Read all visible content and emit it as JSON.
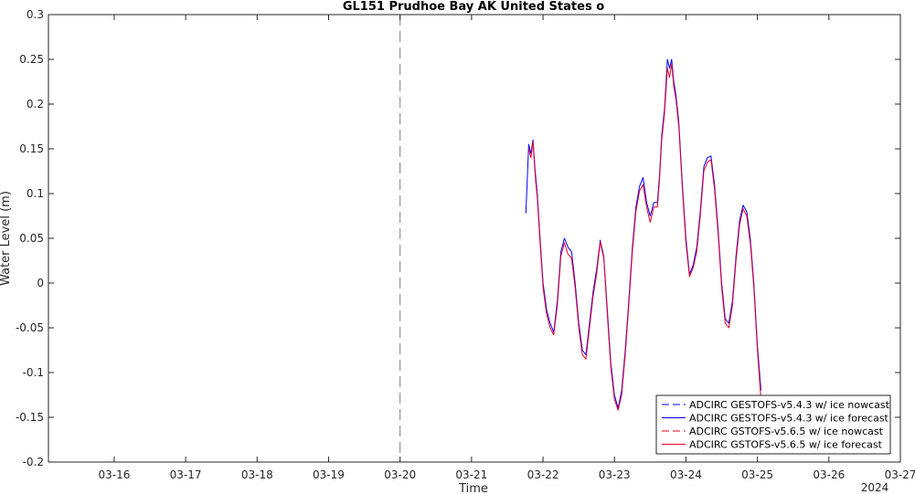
{
  "chart_data": {
    "type": "line",
    "title": "GL151 Prudhoe Bay AK United States o",
    "xlabel": "Time",
    "ylabel": "Water Level (m)",
    "x_tick_labels": [
      "03-16",
      "03-17",
      "03-18",
      "03-19",
      "03-20",
      "03-21",
      "03-22",
      "03-23",
      "03-24",
      "03-25",
      "03-26",
      "03-27"
    ],
    "x_tick_values": [
      16,
      17,
      18,
      19,
      20,
      21,
      22,
      23,
      24,
      25,
      26,
      27
    ],
    "x_secondary_label": "2024",
    "xlim": [
      15.08,
      27.0
    ],
    "ylim": [
      -0.2,
      0.3
    ],
    "y_ticks": [
      -0.2,
      -0.15,
      -0.1,
      -0.05,
      0,
      0.05,
      0.1,
      0.15,
      0.2,
      0.25,
      0.3
    ],
    "y_tick_labels": [
      "-0.2",
      "-0.15",
      "-0.1",
      "-0.05",
      "0",
      "0.05",
      "0.1",
      "0.15",
      "0.2",
      "0.25",
      "0.3"
    ],
    "nowcast_forecast_divider_x": 20.0,
    "grid": false,
    "legend_position": "bottom-right",
    "colors": {
      "blue": "#0000ff",
      "red": "#e8002a",
      "divider": "#7f7f7f"
    },
    "series": [
      {
        "name": "ADCIRC GESTOFS-v5.4.3 w/ ice nowcast",
        "style": "dashed",
        "color": "#0000ff",
        "x": [],
        "y": []
      },
      {
        "name": "ADCIRC GESTOFS-v5.4.3 w/ ice forecast",
        "style": "solid",
        "color": "#0000ff",
        "x": [
          21.76,
          21.8,
          21.83,
          21.86,
          21.89,
          21.92,
          21.95,
          22.0,
          22.05,
          22.1,
          22.15,
          22.2,
          22.25,
          22.3,
          22.35,
          22.4,
          22.45,
          22.5,
          22.55,
          22.6,
          22.65,
          22.7,
          22.75,
          22.8,
          22.85,
          22.9,
          22.95,
          23.0,
          23.05,
          23.1,
          23.15,
          23.2,
          23.25,
          23.3,
          23.35,
          23.4,
          23.45,
          23.5,
          23.55,
          23.6,
          23.63,
          23.66,
          23.7,
          23.74,
          23.77,
          23.8,
          23.83,
          23.86,
          23.9,
          23.95,
          24.0,
          24.05,
          24.1,
          24.15,
          24.2,
          24.25,
          24.3,
          24.35,
          24.4,
          24.45,
          24.5,
          24.55,
          24.6,
          24.65,
          24.7,
          24.75,
          24.8,
          24.85,
          24.9,
          24.95,
          25.0,
          25.05
        ],
        "y": [
          0.078,
          0.155,
          0.145,
          0.16,
          0.125,
          0.1,
          0.06,
          0.0,
          -0.03,
          -0.045,
          -0.055,
          -0.02,
          0.035,
          0.05,
          0.04,
          0.035,
          0.0,
          -0.045,
          -0.075,
          -0.08,
          -0.045,
          -0.01,
          0.015,
          0.048,
          0.03,
          -0.03,
          -0.09,
          -0.125,
          -0.14,
          -0.12,
          -0.075,
          -0.02,
          0.04,
          0.085,
          0.108,
          0.118,
          0.09,
          0.075,
          0.09,
          0.09,
          0.12,
          0.165,
          0.195,
          0.25,
          0.24,
          0.25,
          0.225,
          0.21,
          0.18,
          0.11,
          0.05,
          0.01,
          0.02,
          0.04,
          0.08,
          0.13,
          0.14,
          0.142,
          0.11,
          0.06,
          0.0,
          -0.04,
          -0.045,
          -0.02,
          0.03,
          0.07,
          0.087,
          0.08,
          0.05,
          0.0,
          -0.07,
          -0.12
        ]
      },
      {
        "name": "ADCIRC GSTOFS-v5.6.5 w/ ice nowcast",
        "style": "dashed",
        "color": "#e8002a",
        "x": [],
        "y": []
      },
      {
        "name": "ADCIRC GSTOFS-v5.6.5 w/ ice forecast",
        "style": "solid",
        "color": "#e8002a",
        "x": [
          21.8,
          21.83,
          21.86,
          21.89,
          21.92,
          21.95,
          22.0,
          22.05,
          22.1,
          22.15,
          22.2,
          22.25,
          22.3,
          22.35,
          22.4,
          22.45,
          22.5,
          22.55,
          22.6,
          22.65,
          22.7,
          22.75,
          22.8,
          22.85,
          22.9,
          22.95,
          23.0,
          23.05,
          23.1,
          23.15,
          23.2,
          23.25,
          23.3,
          23.35,
          23.4,
          23.45,
          23.5,
          23.55,
          23.6,
          23.63,
          23.66,
          23.7,
          23.74,
          23.77,
          23.8,
          23.83,
          23.86,
          23.9,
          23.95,
          24.0,
          24.05,
          24.1,
          24.15,
          24.2,
          24.25,
          24.3,
          24.35,
          24.4,
          24.45,
          24.5,
          24.55,
          24.6,
          24.65,
          24.7,
          24.75,
          24.8,
          24.85,
          24.9,
          24.95,
          25.0,
          25.05
        ],
        "y": [
          0.15,
          0.14,
          0.158,
          0.12,
          0.095,
          0.055,
          -0.005,
          -0.035,
          -0.05,
          -0.058,
          -0.025,
          0.03,
          0.045,
          0.032,
          0.028,
          -0.005,
          -0.05,
          -0.08,
          -0.085,
          -0.05,
          -0.015,
          0.01,
          0.046,
          0.028,
          -0.035,
          -0.095,
          -0.13,
          -0.142,
          -0.125,
          -0.08,
          -0.025,
          0.035,
          0.08,
          0.103,
          0.11,
          0.085,
          0.068,
          0.085,
          0.085,
          0.115,
          0.16,
          0.19,
          0.24,
          0.23,
          0.245,
          0.22,
          0.205,
          0.175,
          0.105,
          0.045,
          0.007,
          0.017,
          0.035,
          0.075,
          0.125,
          0.135,
          0.138,
          0.105,
          0.055,
          -0.005,
          -0.045,
          -0.05,
          -0.025,
          0.025,
          0.065,
          0.083,
          0.075,
          0.045,
          -0.005,
          -0.075,
          -0.13
        ]
      }
    ]
  }
}
